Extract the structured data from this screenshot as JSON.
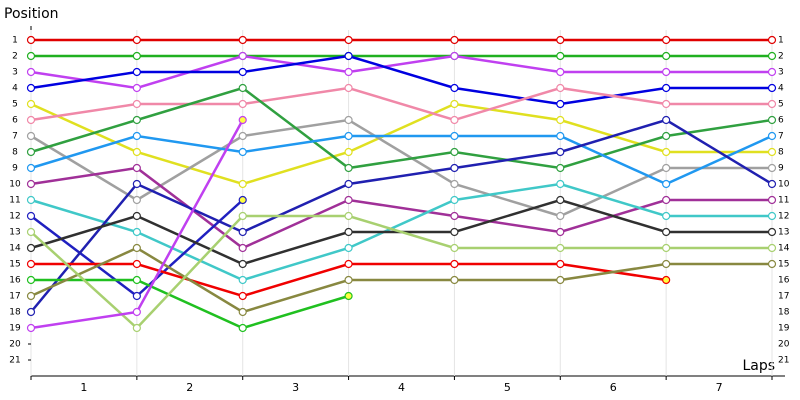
{
  "chart_data": {
    "type": "line",
    "ylabel": "Position",
    "xlabel": "Laps",
    "x": [
      0,
      1,
      2,
      3,
      4,
      5,
      6,
      7
    ],
    "xlim": [
      0,
      7
    ],
    "xticks": [
      {
        "value": 0.5,
        "label": "1"
      },
      {
        "value": 1.5,
        "label": "2"
      },
      {
        "value": 2.5,
        "label": "3"
      },
      {
        "value": 3.5,
        "label": "4"
      },
      {
        "value": 4.5,
        "label": "5"
      },
      {
        "value": 5.5,
        "label": "6"
      },
      {
        "value": 6.5,
        "label": "7"
      }
    ],
    "ylim": [
      22,
      0
    ],
    "yticks": [
      1,
      2,
      3,
      4,
      5,
      6,
      7,
      8,
      9,
      10,
      11,
      12,
      13,
      14,
      15,
      16,
      17,
      18,
      19,
      20,
      21
    ],
    "grid": true,
    "series": [
      {
        "color": "#e00000",
        "values": [
          1,
          1,
          1,
          1,
          1,
          1,
          1,
          1
        ]
      },
      {
        "color": "#20b020",
        "values": [
          2,
          2,
          2,
          2,
          2,
          2,
          2,
          2
        ]
      },
      {
        "color": "#c040f0",
        "values": [
          3,
          4,
          2,
          3,
          2,
          3,
          3,
          3
        ]
      },
      {
        "color": "#0000e0",
        "values": [
          4,
          3,
          3,
          2,
          4,
          5,
          4,
          4
        ]
      },
      {
        "color": "#e0e020",
        "values": [
          5,
          8,
          10,
          8,
          5,
          6,
          8,
          8
        ]
      },
      {
        "color": "#f088a8",
        "values": [
          6,
          5,
          5,
          4,
          6,
          4,
          5,
          5
        ]
      },
      {
        "color": "#a0a0a0",
        "values": [
          7,
          11,
          7,
          6,
          10,
          12,
          9,
          9
        ]
      },
      {
        "color": "#30a040",
        "values": [
          8,
          6,
          4,
          9,
          8,
          9,
          7,
          6
        ]
      },
      {
        "color": "#2098f0",
        "values": [
          9,
          7,
          8,
          7,
          7,
          7,
          10,
          7
        ]
      },
      {
        "color": "#a03098",
        "values": [
          10,
          9,
          14,
          11,
          12,
          13,
          11,
          11
        ]
      },
      {
        "color": "#40c8c8",
        "values": [
          11,
          13,
          16,
          14,
          11,
          10,
          12,
          12
        ]
      },
      {
        "color": "#2020c0",
        "values": [
          12,
          17,
          11,
          null,
          null,
          null,
          null,
          null
        ]
      },
      {
        "color": "#2020b0",
        "values": [
          18,
          10,
          13,
          10,
          9,
          8,
          6,
          10
        ]
      },
      {
        "color": "#303030",
        "values": [
          14,
          12,
          15,
          13,
          13,
          11,
          13,
          13
        ]
      },
      {
        "color": "#f00000",
        "values": [
          15,
          15,
          17,
          15,
          15,
          15,
          16,
          null
        ]
      },
      {
        "color": "#20c020",
        "values": [
          16,
          16,
          19,
          17,
          null,
          null,
          null,
          null
        ]
      },
      {
        "color": "#888840",
        "values": [
          17,
          14,
          18,
          16,
          16,
          16,
          15,
          15
        ]
      },
      {
        "color": "#a8d070",
        "values": [
          13,
          19,
          12,
          12,
          14,
          14,
          14,
          14
        ]
      },
      {
        "color": "#c040f0",
        "values": [
          19,
          18,
          6,
          null,
          null,
          null,
          null,
          null
        ]
      }
    ]
  }
}
